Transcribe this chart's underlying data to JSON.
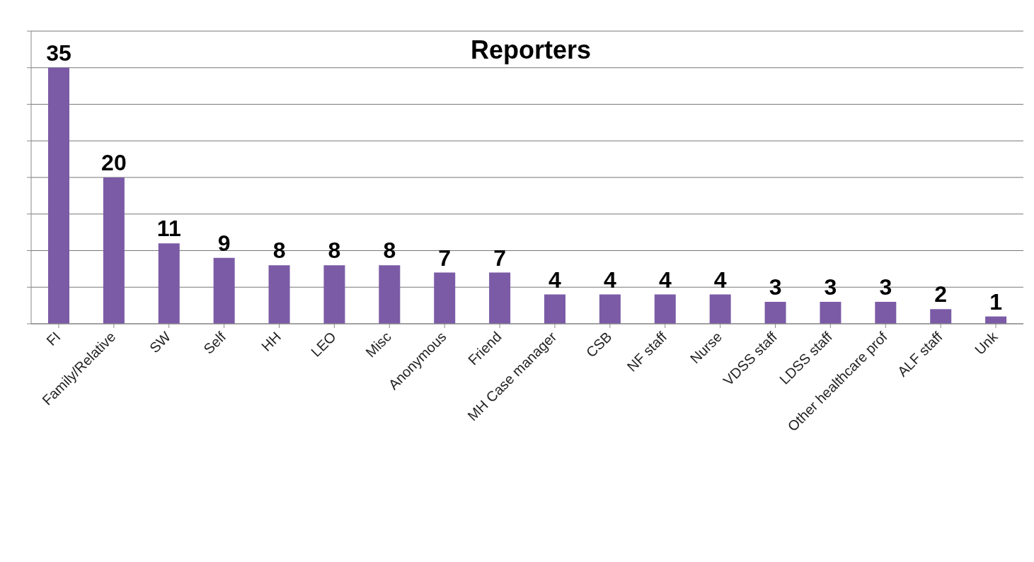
{
  "chart_data": {
    "type": "bar",
    "title": "Reporters",
    "categories": [
      "FI",
      "Family/Relative",
      "SW",
      "Self",
      "HH",
      "LEO",
      "Misc",
      "Anonymous",
      "Friend",
      "MH Case manager",
      "CSB",
      "NF staff",
      "Nurse",
      "VDSS staff",
      "LDSS staff",
      "Other healthcare prof",
      "ALF staff",
      "Unk"
    ],
    "values": [
      35,
      20,
      11,
      9,
      8,
      8,
      8,
      7,
      7,
      4,
      4,
      4,
      4,
      3,
      3,
      3,
      2,
      1
    ],
    "color": "#7b5ba6",
    "ylim": [
      0,
      40
    ],
    "yticks": [
      {
        "value": 0,
        "label": null
      },
      {
        "value": 5,
        "label": null
      },
      {
        "value": 10,
        "label": null
      },
      {
        "value": 15,
        "label": null
      },
      {
        "value": 20,
        "label": null
      },
      {
        "value": 25,
        "label": null
      },
      {
        "value": 30,
        "label": null
      },
      {
        "value": 35,
        "label": null
      },
      {
        "value": 40,
        "label": null
      }
    ],
    "tick_labels": "x",
    "grid": "y",
    "data_labels": true,
    "legend": false
  }
}
